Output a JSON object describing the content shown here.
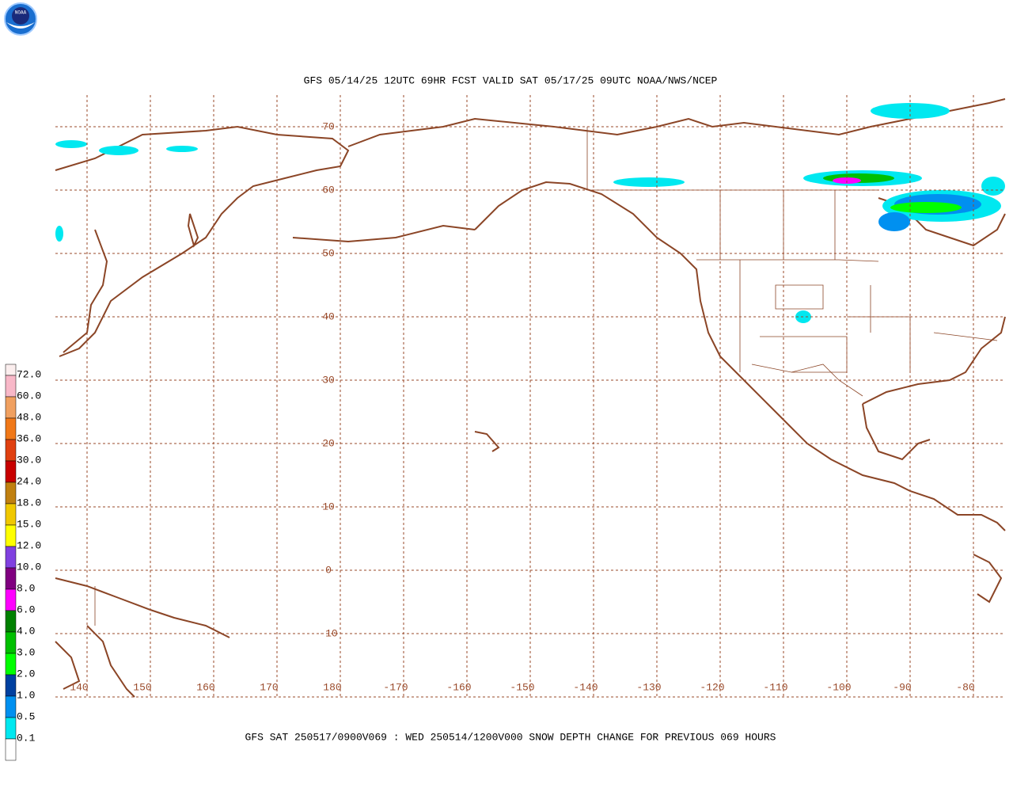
{
  "logo": {
    "text": "NOAA"
  },
  "header": {
    "title": "GFS 05/14/25 12UTC 69HR FCST VALID SAT 05/17/25 09UTC NOAA/NWS/NCEP"
  },
  "map": {
    "lat_labels": [
      70,
      60,
      50,
      40,
      30,
      20,
      10,
      0,
      -10
    ],
    "lon_labels": [
      140,
      150,
      160,
      170,
      180,
      -170,
      -160,
      -150,
      -140,
      -130,
      -120,
      -110,
      -100,
      -90,
      -80
    ],
    "grid_color": "#9a4a2a"
  },
  "legend": {
    "colors": [
      "#fbeeee",
      "#f8b8c8",
      "#f0a060",
      "#f07818",
      "#e04010",
      "#c80000",
      "#c08010",
      "#f0c800",
      "#ffff00",
      "#8040e0",
      "#800080",
      "#ff00ff",
      "#008000",
      "#00c000",
      "#00ff00",
      "#0040a0",
      "#0090f0",
      "#00e8f0",
      "#ffffff"
    ],
    "labels": [
      "72.0",
      "60.0",
      "48.0",
      "36.0",
      "30.0",
      "24.0",
      "18.0",
      "15.0",
      "12.0",
      "10.0",
      "8.0",
      "6.0",
      "4.0",
      "3.0",
      "2.0",
      "1.0",
      "0.5",
      "0.1"
    ]
  },
  "footer": {
    "caption": "GFS SAT 250517/0900V069 : WED 250514/1200V000 SNOW DEPTH CHANGE FOR PREVIOUS 069 HOURS"
  }
}
